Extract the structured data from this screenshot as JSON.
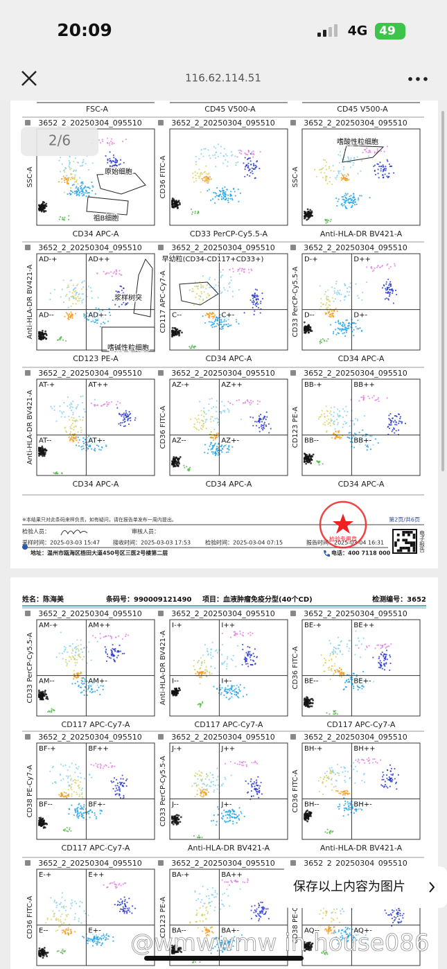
{
  "status_bar": {
    "time": "20:09",
    "network": "4G",
    "battery": "49"
  },
  "nav": {
    "url": "116.62.114.51"
  },
  "page_indicator": "2/6",
  "page1": {
    "top_axis_labels": [
      "FSC-A",
      "CD45 V500-A",
      "CD45 V500-A"
    ],
    "plots": [
      {
        "title": "3652_2_20250304_095510",
        "y_label": "SSC-A",
        "x_label": "CD34 APC-A",
        "gates": [
          "原始细胞",
          "祖B细胞"
        ]
      },
      {
        "title": "3652_2_20250304_095510",
        "y_label": "CD36 FITC-A",
        "x_label": "CD33 PerCP-Cy5.5-A"
      },
      {
        "title": "3652_2_20250304_095510",
        "y_label": "SSC-A",
        "x_label": "Anti-HLA-DR BV421-A",
        "gates": [
          "嗜酸性粒细胞"
        ]
      },
      {
        "title": "3652_2_20250304_095510",
        "y_label": "Anti-HLA-DR BV421-A",
        "x_label": "CD123 PE-A",
        "quadrants": [
          "AD-+",
          "AD++",
          "AD--",
          "AD+-"
        ],
        "gates": [
          "浆样树突",
          "嗜碱性粒细胞"
        ]
      },
      {
        "title": "3652_2_20250304_095510",
        "y_label": "CD117 APC-Cy7-A",
        "x_label": "CD34 APC-A",
        "quadrants": [
          "C--",
          "C+-"
        ],
        "gates": [
          "早幼粒(CD34-CD117+CD33+)"
        ]
      },
      {
        "title": "3652_2_20250304_095510",
        "y_label": "CD33 PerCP-Cy5.5-A",
        "x_label": "CD34 APC-A",
        "quadrants": [
          "D-+",
          "D++",
          "D--",
          "D+-"
        ]
      },
      {
        "title": "3652_2_20250304_095510",
        "y_label": "Anti-HLA-DR BV421-A",
        "x_label": "CD34 APC-A",
        "quadrants": [
          "AT-+",
          "AT++",
          "AT--",
          "AT+-"
        ]
      },
      {
        "title": "3652_2_20250304_095510",
        "y_label": "CD36 FITC-A",
        "x_label": "CD34 APC-A",
        "quadrants": [
          "AZ-+",
          "AZ++",
          "AZ--",
          "AZ+-"
        ]
      },
      {
        "title": "3652_2_20250304_095510",
        "y_label": "CD123 PE-A",
        "x_label": "CD34 APC-A",
        "quadrants": [
          "BB-+",
          "BB++",
          "BB--",
          "BB+-"
        ]
      }
    ],
    "footer": {
      "note": "※本结果只对此条码来样负责，如有疑问，请在报告单发布一周内提出。",
      "page": "第2页/共6页",
      "tester": "检验人员：",
      "reviewer": "审核人员：",
      "sample_time": "采样时间：2025-03-03 15:47",
      "receive_time": "接收时间：2025-03-03 17:53",
      "test_time": "检验时间：2025-03-04 07:15",
      "report_time": "报告时间：2025-03-04 16:31",
      "address": "地址：温州市瓯海区梧田大道450号区三医2号楼第二层",
      "phone": "电话：400 7118 000",
      "e_report": "电子报告",
      "stamp": "检验专用章"
    }
  },
  "page2": {
    "header": {
      "name": "姓名：陈海美",
      "barcode": "条码号：990009121490",
      "project": "项目：血液肿瘤免疫分型(40个CD)",
      "test_id": "检测编号：3652"
    },
    "plots": [
      {
        "title": "3652_2_20250304_095510",
        "y_label": "CD33 PerCP-Cy5.5-A",
        "x_label": "CD117 APC-Cy7-A",
        "quadrants": [
          "AM-+",
          "AM++",
          "AM--",
          "AM+-"
        ]
      },
      {
        "title": "3652_2_20250304_095510",
        "y_label": "Anti-HLA-DR BV421-A",
        "x_label": "CD117 APC-Cy7-A",
        "quadrants": [
          "I-+",
          "I++",
          "I--",
          "I+-"
        ]
      },
      {
        "title": "3652_2_20250304_095510",
        "y_label": "CD36 FITC-A",
        "x_label": "CD117 APC-Cy7-A",
        "quadrants": [
          "BE-+",
          "BE++",
          "BE--",
          "BE+-"
        ]
      },
      {
        "title": "3652_2_20250304_095510",
        "y_label": "CD38 PE-Cy7-A",
        "x_label": "CD117 APC-Cy7-A",
        "quadrants": [
          "BF-+",
          "BF++",
          "BF--",
          "BF+-"
        ]
      },
      {
        "title": "3652_2_20250304_095510",
        "y_label": "CD33 PerCP-Cy5.5-A",
        "x_label": "Anti-HLA-DR BV421-A",
        "quadrants": [
          "J-+",
          "J++",
          "J--",
          "J+-"
        ]
      },
      {
        "title": "3652_2_20250304_095510",
        "y_label": "CD36 FITC-A",
        "x_label": "Anti-HLA-DR BV421-A",
        "quadrants": [
          "BH-+",
          "BH++",
          "BH--",
          "BH+-"
        ]
      },
      {
        "title": "3652_2_20250304_095510",
        "y_label": "CD36 FITC-A",
        "quadrants": [
          "E-+",
          "E++",
          "E--",
          "E+-"
        ]
      },
      {
        "title": "3652_2_20250304_095510",
        "y_label": "CD123 PE-A",
        "quadrants": [
          "BA-+",
          "BA++",
          "BA--",
          "BA+-"
        ]
      },
      {
        "title": "3652_2_20250304_095510",
        "y_label": "CD38 PE-Cy7-A",
        "quadrants": [
          "AQ--",
          "AQ+-"
        ]
      }
    ]
  },
  "save_button": "保存以上内容为图片",
  "watermark": "@wmwwmw in house086"
}
